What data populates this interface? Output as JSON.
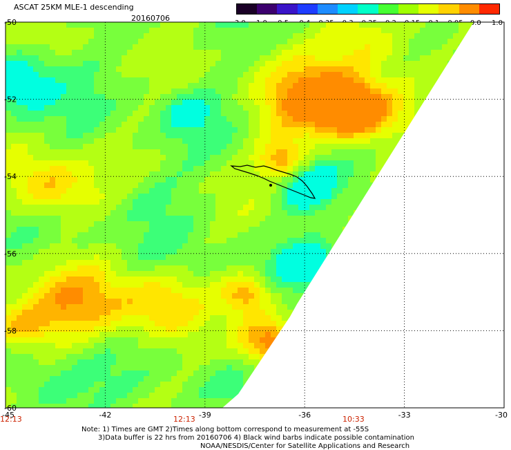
{
  "title": "ASCAT 25KM MLE-1 descending",
  "date": "20160706",
  "colorbar": {
    "labels": [
      "-3.0",
      "-1.0",
      "-0.5",
      "-0.4",
      "-0.35",
      "-0.3",
      "-0.25",
      "-0.2",
      "-0.15",
      "-0.1",
      "-0.05",
      "0.0",
      "1.0"
    ],
    "colors": [
      "#1a0026",
      "#3c006e",
      "#3a14c8",
      "#1e3cff",
      "#1e8cff",
      "#00d2ff",
      "#00ffc8",
      "#46ff32",
      "#a0ff00",
      "#e6ff00",
      "#ffd200",
      "#ff8c00",
      "#ff2800"
    ]
  },
  "map": {
    "lon_ticks": [
      "-45",
      "-42",
      "-39",
      "-36",
      "-33",
      "-30"
    ],
    "lat_ticks": [
      "-50",
      "-52",
      "-54",
      "-56",
      "-58",
      "-60"
    ],
    "time_labels": [
      "12:13",
      "12:13",
      "10:33"
    ]
  },
  "notes": [
    "Note: 1) Times are GMT 2)Times along bottom correspond to measurement at -55S",
    "3)Data buffer is 22 hrs from 20160706 4) Black wind barbs indicate possible contamination",
    "NOAA/NESDIS/Center for Satellite Applications and Research"
  ]
}
